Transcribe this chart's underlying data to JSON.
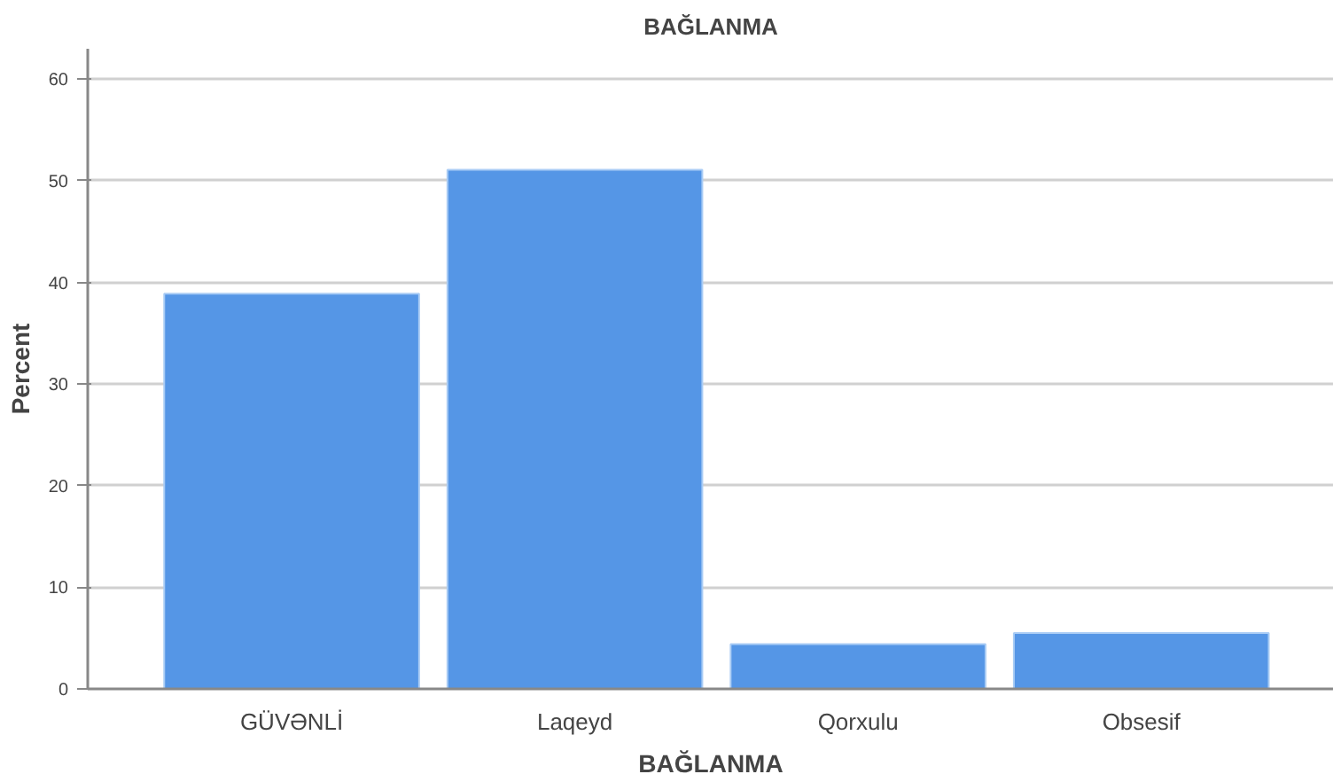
{
  "chart_data": {
    "type": "bar",
    "title": "BAĞLANMA",
    "xlabel": "BAĞLANMA",
    "ylabel": "Percent",
    "categories": [
      "GÜVƏNLİ",
      "Laqeyd",
      "Qorxulu",
      "Obsesif"
    ],
    "values": [
      38.9,
      51.1,
      4.4,
      5.5
    ],
    "color": "#5596e6",
    "ylim": [
      0,
      63
    ],
    "yticks": [
      0,
      10,
      20,
      30,
      40,
      50,
      60
    ],
    "grid": "y"
  }
}
